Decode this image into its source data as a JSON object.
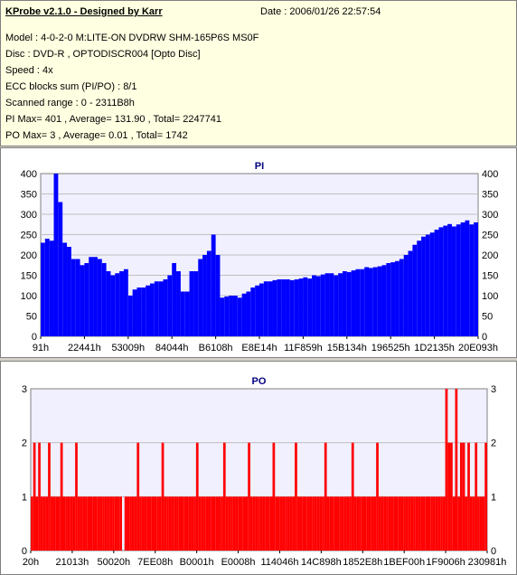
{
  "header": {
    "title": "KProbe v2.1.0 - Designed by Karr",
    "date": "Date : 2006/01/26 22:57:54",
    "lines": [
      "Model : 4-0-2-0 M:LITE-ON DVDRW SHM-165P6S MS0F",
      "Disc : DVD-R , OPTODISCR004 [Opto Disc]",
      "Speed : 4x",
      "ECC blocks sum (PI/PO) : 8/1",
      "Scanned range : 0 - 2311B8h",
      "PI Max= 401 , Average= 131.90 , Total= 2247741",
      "PO Max= 3 , Average= 0.01 , Total= 1742"
    ]
  },
  "colors": {
    "pi": "#0000ff",
    "po": "#ff0000",
    "plot_bg": "#f0f0ff",
    "grid": "#c0c0c0"
  },
  "chart_data": [
    {
      "type": "area",
      "title": "PI",
      "ylim": [
        0,
        400
      ],
      "yticks": [
        0,
        50,
        100,
        150,
        200,
        250,
        300,
        350,
        400
      ],
      "xtick_labels": [
        "91h",
        "22441h",
        "53009h",
        "84044h",
        "B6108h",
        "E8E14h",
        "11F859h",
        "15B134h",
        "196525h",
        "1D2135h",
        "20E093h"
      ],
      "series": [
        {
          "values": [
            230,
            240,
            235,
            400,
            330,
            230,
            220,
            190,
            190,
            175,
            180,
            195,
            195,
            190,
            180,
            160,
            150,
            155,
            160,
            165,
            100,
            115,
            120,
            120,
            125,
            130,
            135,
            135,
            140,
            150,
            180,
            160,
            110,
            110,
            160,
            160,
            190,
            200,
            210,
            250,
            200,
            95,
            98,
            100,
            100,
            95,
            105,
            110,
            120,
            125,
            130,
            135,
            135,
            138,
            140,
            140,
            140,
            138,
            140,
            142,
            145,
            142,
            150,
            148,
            152,
            155,
            155,
            150,
            155,
            160,
            158,
            162,
            165,
            165,
            170,
            168,
            170,
            172,
            175,
            180,
            182,
            185,
            190,
            200,
            210,
            225,
            235,
            245,
            250,
            255,
            262,
            268,
            272,
            276,
            270,
            275,
            280,
            285,
            275,
            280
          ]
        }
      ]
    },
    {
      "type": "bar",
      "title": "PO",
      "ylim": [
        0,
        3
      ],
      "yticks": [
        0,
        1,
        2,
        3
      ],
      "xtick_labels": [
        "20h",
        "21013h",
        "50020h",
        "7EE08h",
        "B0001h",
        "E0008h",
        "114046h",
        "14C898h",
        "1852E8h",
        "1BEF00h",
        "1F9006h",
        "230981h"
      ],
      "series": [
        {
          "values": [
            1,
            2,
            1,
            2,
            1,
            1,
            1,
            2,
            1,
            1,
            1,
            1,
            2,
            1,
            1,
            1,
            1,
            1,
            2,
            1,
            1,
            1,
            1,
            1,
            1,
            1,
            1,
            1,
            1,
            1,
            1,
            1,
            1,
            1,
            1,
            1,
            1,
            0,
            1,
            1,
            1,
            1,
            1,
            2,
            1,
            1,
            1,
            1,
            1,
            1,
            1,
            1,
            1,
            2,
            1,
            1,
            1,
            1,
            1,
            1,
            1,
            1,
            1,
            1,
            1,
            1,
            1,
            2,
            1,
            1,
            1,
            1,
            1,
            1,
            1,
            1,
            1,
            1,
            2,
            1,
            1,
            1,
            1,
            1,
            1,
            1,
            1,
            1,
            2,
            1,
            1,
            1,
            1,
            1,
            1,
            1,
            1,
            1,
            2,
            1,
            1,
            1,
            1,
            1,
            1,
            1,
            1,
            2,
            1,
            1,
            1,
            1,
            1,
            1,
            1,
            1,
            1,
            1,
            1,
            2,
            1,
            1,
            1,
            1,
            1,
            1,
            1,
            1,
            1,
            1,
            2,
            1,
            1,
            1,
            1,
            1,
            1,
            1,
            1,
            1,
            2,
            1,
            1,
            1,
            1,
            1,
            1,
            1,
            1,
            1,
            1,
            1,
            1,
            1,
            1,
            1,
            1,
            1,
            1,
            1,
            1,
            1,
            1,
            1,
            1,
            1,
            1,
            1,
            3,
            2,
            2,
            1,
            3,
            1,
            2,
            2,
            1,
            2,
            1,
            1,
            2,
            1,
            1,
            1,
            2
          ]
        }
      ]
    }
  ]
}
